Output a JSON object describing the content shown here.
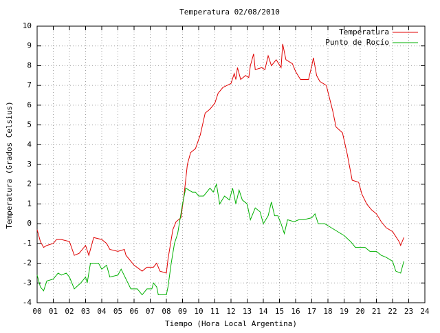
{
  "chart_data": {
    "type": "line",
    "title": "Temperatura 02/08/2010",
    "x_label": "Tiempo (Hora Local Argentina)",
    "y_label": "Temperatura (Grados Celsius)",
    "xlim": [
      0,
      24
    ],
    "ylim": [
      -4,
      10
    ],
    "xticks": [
      {
        "value": 0,
        "label": "00"
      },
      {
        "value": 1,
        "label": "01"
      },
      {
        "value": 2,
        "label": "02"
      },
      {
        "value": 3,
        "label": "03"
      },
      {
        "value": 4,
        "label": "04"
      },
      {
        "value": 5,
        "label": "05"
      },
      {
        "value": 6,
        "label": "06"
      },
      {
        "value": 7,
        "label": "07"
      },
      {
        "value": 8,
        "label": "08"
      },
      {
        "value": 9,
        "label": "09"
      },
      10,
      11,
      12,
      13,
      14,
      15,
      16,
      17,
      18,
      19,
      20,
      21,
      22,
      23,
      24
    ],
    "yticks": [
      -4,
      -3,
      -2,
      -1,
      0,
      1,
      2,
      3,
      4,
      5,
      6,
      7,
      8,
      9,
      10
    ],
    "grid": true,
    "legend": "top-right",
    "series": [
      {
        "name": "Temperatura",
        "color": "#e00000",
        "x": [
          0,
          0.2,
          0.4,
          0.6,
          1.0,
          1.2,
          1.5,
          2.0,
          2.3,
          2.6,
          3.0,
          3.2,
          3.5,
          4.0,
          4.3,
          4.5,
          5.0,
          5.4,
          5.5,
          6.0,
          6.5,
          6.8,
          7.2,
          7.4,
          7.6,
          8.0,
          8.1,
          8.4,
          8.6,
          8.9,
          9.1,
          9.3,
          9.5,
          9.8,
          10.1,
          10.4,
          10.7,
          11.0,
          11.2,
          11.5,
          12.0,
          12.2,
          12.3,
          12.4,
          12.6,
          12.9,
          13.1,
          13.2,
          13.4,
          13.5,
          13.9,
          14.1,
          14.3,
          14.5,
          14.8,
          15.1,
          15.2,
          15.4,
          15.8,
          16.0,
          16.3,
          16.8,
          17.0,
          17.1,
          17.3,
          17.5,
          17.9,
          18.3,
          18.5,
          18.9,
          19.2,
          19.5,
          19.9,
          20.1,
          20.4,
          20.7,
          21.0,
          21.3,
          21.6,
          22.0,
          22.4,
          22.5,
          22.7
        ],
        "values": [
          -0.3,
          -0.9,
          -1.2,
          -1.1,
          -1.0,
          -0.8,
          -0.8,
          -0.9,
          -1.6,
          -1.5,
          -1.1,
          -1.6,
          -0.7,
          -0.8,
          -1.0,
          -1.3,
          -1.4,
          -1.3,
          -1.6,
          -2.1,
          -2.4,
          -2.2,
          -2.2,
          -2.0,
          -2.4,
          -2.5,
          -1.8,
          -0.3,
          0.1,
          0.3,
          1.5,
          3.0,
          3.6,
          3.8,
          4.5,
          5.6,
          5.8,
          6.1,
          6.6,
          6.9,
          7.1,
          7.6,
          7.3,
          7.9,
          7.3,
          7.5,
          7.4,
          8.0,
          8.6,
          7.8,
          7.9,
          7.8,
          8.5,
          8.0,
          8.3,
          7.9,
          9.1,
          8.3,
          8.1,
          7.7,
          7.3,
          7.3,
          8.0,
          8.4,
          7.5,
          7.2,
          7.0,
          5.7,
          4.9,
          4.6,
          3.5,
          2.2,
          2.1,
          1.5,
          1.0,
          0.7,
          0.5,
          0.1,
          -0.2,
          -0.4,
          -0.9,
          -1.1,
          -0.7
        ]
      },
      {
        "name": "Punto de Rocío",
        "color": "#00b000",
        "x": [
          0,
          0.2,
          0.4,
          0.6,
          1.0,
          1.3,
          1.5,
          1.8,
          2.0,
          2.3,
          2.7,
          3.0,
          3.1,
          3.3,
          3.8,
          4.0,
          4.3,
          4.5,
          5.0,
          5.2,
          5.5,
          5.8,
          6.2,
          6.5,
          6.8,
          7.1,
          7.2,
          7.4,
          7.5,
          8.0,
          8.1,
          8.3,
          8.5,
          8.7,
          9.0,
          9.2,
          9.6,
          9.8,
          10.0,
          10.3,
          10.5,
          10.7,
          10.9,
          11.1,
          11.3,
          11.6,
          11.9,
          12.1,
          12.3,
          12.5,
          12.7,
          13.0,
          13.2,
          13.5,
          13.8,
          14.0,
          14.3,
          14.5,
          14.7,
          14.9,
          15.1,
          15.3,
          15.5,
          15.9,
          16.2,
          16.5,
          17.0,
          17.2,
          17.4,
          17.8,
          18.2,
          18.6,
          19.0,
          19.4,
          19.7,
          20.3,
          20.6,
          21.0,
          21.3,
          21.6,
          22.0,
          22.2,
          22.5,
          22.7
        ],
        "values": [
          -2.6,
          -3.2,
          -3.4,
          -2.9,
          -2.8,
          -2.5,
          -2.6,
          -2.5,
          -2.7,
          -3.3,
          -3.0,
          -2.7,
          -3.0,
          -2.0,
          -2.0,
          -2.3,
          -2.1,
          -2.7,
          -2.6,
          -2.3,
          -2.8,
          -3.3,
          -3.3,
          -3.6,
          -3.3,
          -3.3,
          -3.0,
          -3.2,
          -3.6,
          -3.6,
          -3.2,
          -2.0,
          -1.0,
          -0.5,
          1.0,
          1.8,
          1.6,
          1.6,
          1.4,
          1.4,
          1.6,
          1.8,
          1.6,
          2.0,
          1.0,
          1.4,
          1.2,
          1.8,
          1.0,
          1.7,
          1.2,
          1.0,
          0.2,
          0.8,
          0.6,
          0.0,
          0.4,
          1.1,
          0.4,
          0.4,
          0.0,
          -0.5,
          0.2,
          0.1,
          0.2,
          0.2,
          0.3,
          0.5,
          0.0,
          0.0,
          -0.2,
          -0.4,
          -0.6,
          -0.9,
          -1.2,
          -1.2,
          -1.4,
          -1.4,
          -1.6,
          -1.7,
          -1.9,
          -2.4,
          -2.5,
          -1.9
        ]
      }
    ]
  }
}
